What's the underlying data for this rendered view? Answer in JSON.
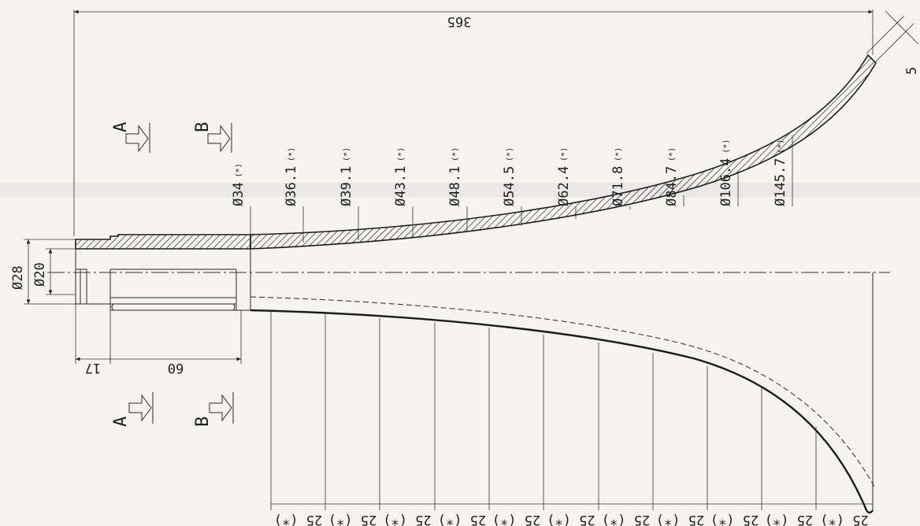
{
  "overall_length": "365",
  "flare_thickness": "5",
  "shank_outer_dia": "Ø28",
  "shank_bore_dia": "Ø20",
  "shank_lengths": [
    "17",
    "60"
  ],
  "diameters": [
    {
      "value": "Ø34",
      "star": "(*)"
    },
    {
      "value": "Ø36.1",
      "star": "(*)"
    },
    {
      "value": "Ø39.1",
      "star": "(*)"
    },
    {
      "value": "Ø43.1",
      "star": "(*)"
    },
    {
      "value": "Ø48.1",
      "star": "(*)"
    },
    {
      "value": "Ø54.5",
      "star": "(*)"
    },
    {
      "value": "Ø62.4",
      "star": "(*)"
    },
    {
      "value": "Ø71.8",
      "star": "(*)"
    },
    {
      "value": "Ø84.7",
      "star": "(*)"
    },
    {
      "value": "Ø106.4",
      "star": "(*)"
    },
    {
      "value": "Ø145.7",
      "star": "(*)"
    }
  ],
  "pitch_label": "25 (*)",
  "section_a": "A",
  "section_b": "B",
  "colors": {
    "ink": "#1e1e1e",
    "paper": "#f4f3ee"
  }
}
